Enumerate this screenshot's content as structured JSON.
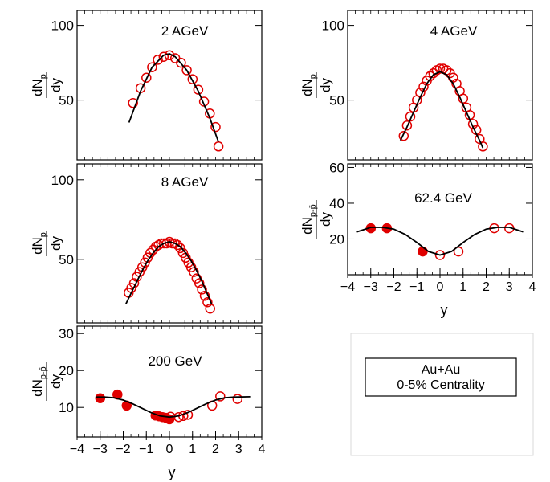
{
  "figure": {
    "legend_box": {
      "line1": "Au+Au",
      "line2": "0-5% Centrality"
    }
  },
  "chart_data": [
    {
      "type": "scatter",
      "title": "2 AGeV",
      "ylabel_main": "dN",
      "ylabel_sub": "p",
      "ylabel_den": "dy",
      "xlim": [
        -1.6,
        1.6
      ],
      "ylim": [
        10,
        110
      ],
      "yticks": [
        50,
        100
      ],
      "series": [
        {
          "marker": "open-circle",
          "color": "#e00000",
          "x": [
            -0.63,
            -0.5,
            -0.4,
            -0.3,
            -0.2,
            -0.1,
            0.0,
            0.1,
            0.2,
            0.3,
            0.4,
            0.5,
            0.6,
            0.7
          ],
          "y": [
            48,
            58,
            65,
            72,
            77,
            79,
            80,
            78,
            75,
            70,
            64,
            57,
            49,
            41
          ]
        },
        {
          "marker": "open-circle",
          "color": "#e00000",
          "x": [
            0.8,
            0.85
          ],
          "y": [
            32,
            19
          ]
        },
        {
          "marker": "line",
          "color": "#000000",
          "x": [
            -0.7,
            -0.5,
            -0.3,
            -0.1,
            0.0,
            0.1,
            0.3,
            0.5,
            0.7,
            0.85
          ],
          "y": [
            35,
            56,
            72,
            80,
            81,
            79,
            70,
            56,
            38,
            22
          ]
        }
      ]
    },
    {
      "type": "scatter",
      "title": "4 AGeV",
      "ylabel_main": "dN",
      "ylabel_sub": "p",
      "ylabel_den": "dy",
      "xlim": [
        -2.8,
        2.8
      ],
      "ylim": [
        10,
        110
      ],
      "yticks": [
        50,
        100
      ],
      "series": [
        {
          "marker": "open-circle",
          "color": "#e00000",
          "x": [
            -1.1,
            -1.0,
            -0.9,
            -0.8,
            -0.7,
            -0.6,
            -0.5,
            -0.4,
            -0.3,
            -0.2,
            -0.1,
            0.0,
            0.1,
            0.2,
            0.3,
            0.4,
            0.5,
            0.6,
            0.7,
            0.8,
            0.9,
            1.0,
            1.1,
            1.2,
            1.3
          ],
          "y": [
            26,
            33,
            39,
            45,
            50,
            55,
            59,
            63,
            66,
            68,
            70,
            71,
            71,
            70,
            68,
            65,
            61,
            56,
            51,
            45,
            40,
            34,
            30,
            24,
            19
          ]
        },
        {
          "marker": "line",
          "color": "#000000",
          "x": [
            -1.2,
            -1.0,
            -0.8,
            -0.6,
            -0.4,
            -0.2,
            0.0,
            0.2,
            0.4,
            0.6,
            0.8,
            1.0,
            1.2,
            1.3
          ],
          "y": [
            23,
            32,
            42,
            52,
            61,
            67,
            69,
            67,
            61,
            52,
            42,
            32,
            23,
            18
          ]
        }
      ]
    },
    {
      "type": "scatter",
      "title": "8 AGeV",
      "ylabel_main": "dN",
      "ylabel_sub": "p",
      "ylabel_den": "dy",
      "xlim": [
        -3.4,
        3.4
      ],
      "ylim": [
        10,
        110
      ],
      "yticks": [
        50,
        100
      ],
      "series": [
        {
          "marker": "open-circle",
          "color": "#e00000",
          "x": [
            -1.5,
            -1.4,
            -1.3,
            -1.2,
            -1.1,
            -1.0,
            -0.9,
            -0.8,
            -0.7,
            -0.6,
            -0.5,
            -0.4,
            -0.3,
            -0.2,
            -0.1,
            0.0,
            0.1,
            0.2,
            0.3,
            0.4,
            0.5,
            0.6,
            0.7,
            0.8,
            0.9,
            1.0,
            1.1,
            1.2,
            1.3,
            1.4,
            1.5
          ],
          "y": [
            29,
            32,
            35,
            39,
            42,
            45,
            48,
            51,
            54,
            56,
            58,
            59,
            60,
            60,
            60,
            61,
            60,
            60,
            59,
            57,
            54,
            51,
            48,
            45,
            42,
            38,
            35,
            31,
            27,
            23,
            19
          ]
        },
        {
          "marker": "line",
          "color": "#000000",
          "x": [
            -1.6,
            -1.4,
            -1.2,
            -1.0,
            -0.8,
            -0.6,
            -0.4,
            -0.2,
            0.0,
            0.2,
            0.4,
            0.6,
            0.8,
            1.0,
            1.2,
            1.4,
            1.55
          ],
          "y": [
            22,
            29,
            36,
            43,
            49,
            54,
            58,
            60,
            61,
            60,
            58,
            54,
            49,
            43,
            36,
            28,
            22
          ]
        }
      ]
    },
    {
      "type": "scatter",
      "title": "62.4 GeV",
      "ylabel_main": "dN",
      "ylabel_sub": "p-p̄",
      "ylabel_den": "dy",
      "xlabel": "y",
      "xlim": [
        -4,
        4
      ],
      "ylim": [
        0,
        62
      ],
      "xticks": [
        -4,
        -3,
        -2,
        -1,
        0,
        1,
        2,
        3,
        4
      ],
      "yticks": [
        20,
        40,
        60
      ],
      "series": [
        {
          "marker": "filled-circle",
          "color": "#e00000",
          "x": [
            -3.0,
            -2.3,
            -0.75
          ],
          "y": [
            26,
            26,
            13
          ]
        },
        {
          "marker": "open-circle",
          "color": "#e00000",
          "x": [
            0.0,
            0.8,
            2.35,
            3.0
          ],
          "y": [
            11,
            13,
            26,
            26
          ]
        },
        {
          "marker": "line",
          "color": "#000000",
          "x": [
            -3.6,
            -3.0,
            -2.5,
            -2.0,
            -1.5,
            -1.0,
            -0.5,
            0.0,
            0.5,
            1.0,
            1.5,
            2.0,
            2.5,
            3.0,
            3.6
          ],
          "y": [
            24,
            26.5,
            26.5,
            25.5,
            22.5,
            18,
            13,
            11,
            13,
            18,
            22.5,
            25.5,
            26.5,
            26.5,
            24
          ]
        }
      ]
    },
    {
      "type": "scatter",
      "title": "200 GeV",
      "ylabel_main": "dN",
      "ylabel_sub": "p-p̄",
      "ylabel_den": "dy",
      "xlabel": "y",
      "xlim": [
        -4,
        4
      ],
      "ylim": [
        2,
        32
      ],
      "xticks": [
        -4,
        -3,
        -2,
        -1,
        0,
        1,
        2,
        3,
        4
      ],
      "yticks": [
        10,
        20,
        30
      ],
      "series": [
        {
          "marker": "filled-circle",
          "color": "#e00000",
          "x": [
            -3.0,
            -2.25,
            -1.85,
            -0.6,
            -0.45,
            -0.3,
            -0.15,
            0.0
          ],
          "y": [
            12.5,
            13.5,
            10.5,
            7.8,
            7.6,
            7.4,
            7.2,
            6.8
          ]
        },
        {
          "marker": "open-circle",
          "color": "#e00000",
          "x": [
            0.05,
            0.4,
            0.6,
            0.8,
            1.85,
            2.2,
            2.95
          ],
          "y": [
            7.5,
            7.4,
            7.7,
            8.0,
            10.5,
            13.0,
            12.3
          ]
        },
        {
          "marker": "line",
          "color": "#000000",
          "x": [
            -3.2,
            -2.8,
            -2.4,
            -2.0,
            -1.6,
            -1.2,
            -0.8,
            -0.4,
            0.0,
            0.4,
            0.8,
            1.2,
            1.6,
            2.0,
            2.4,
            2.8,
            3.5
          ],
          "y": [
            12.8,
            12.8,
            12.6,
            12.0,
            11.0,
            9.8,
            8.6,
            7.7,
            7.4,
            7.7,
            8.6,
            9.8,
            11.0,
            12.0,
            12.6,
            12.8,
            12.9
          ]
        }
      ]
    }
  ]
}
